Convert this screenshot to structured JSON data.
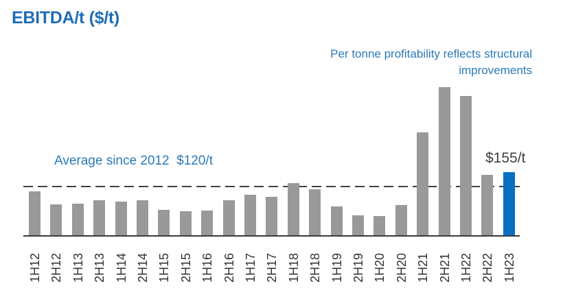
{
  "title": "EBITDA/t ($/t)",
  "annotations": {
    "headline": "Per tonne profitability reflects structural improvements",
    "average": "Average since 2012  $120/t",
    "latest": "$155/t"
  },
  "colors": {
    "title": "#1f6db3",
    "annotation": "#2a7ab8",
    "bar_default": "#999999",
    "bar_highlight": "#0a6fc2",
    "average_line": "#404040"
  },
  "chart_data": {
    "type": "bar",
    "title": "EBITDA/t ($/t)",
    "xlabel": "",
    "ylabel": "",
    "categories": [
      "1H12",
      "2H12",
      "1H13",
      "2H13",
      "1H14",
      "2H14",
      "1H15",
      "2H15",
      "1H16",
      "2H16",
      "1H17",
      "2H17",
      "1H18",
      "2H18",
      "1H19",
      "2H19",
      "1H20",
      "2H20",
      "1H21",
      "2H21",
      "1H22",
      "2H22",
      "1H23"
    ],
    "values": [
      108,
      76,
      78,
      86,
      83,
      86,
      62,
      59,
      61,
      86,
      100,
      95,
      128,
      113,
      71,
      49,
      47,
      74,
      253,
      365,
      343,
      149,
      155
    ],
    "highlight_index": 22,
    "reference_line": {
      "label": "Average since 2012",
      "value": 120,
      "style": "dashed"
    },
    "data_labels": [
      {
        "category": "1H23",
        "text": "$155/t"
      }
    ],
    "ylim": [
      0,
      380
    ],
    "grid": false,
    "legend": null,
    "x_tick_rotation": -90
  }
}
